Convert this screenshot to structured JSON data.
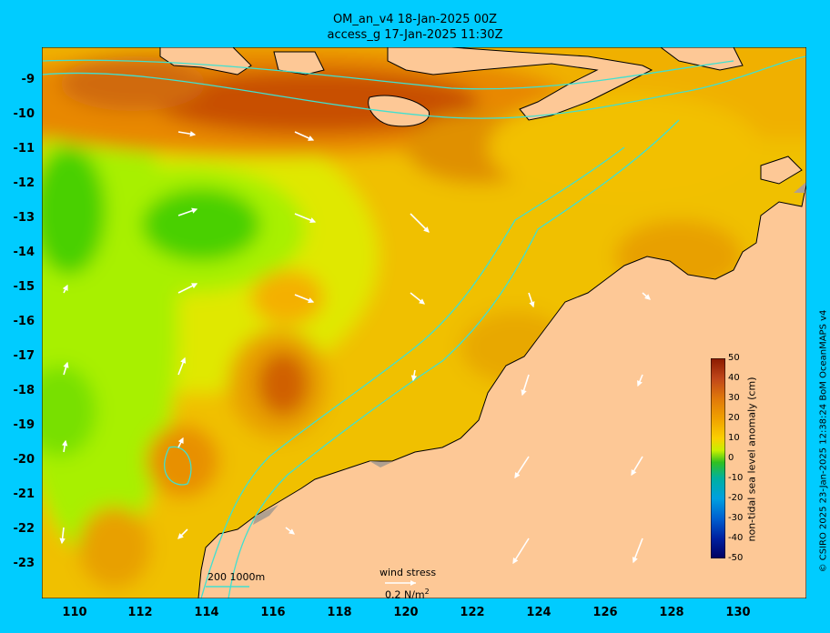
{
  "titles": {
    "line1": "OM_an_v4  18-Jan-2025 00Z",
    "line2": "access_g 17-Jan-2025 11:30Z"
  },
  "lat_ticks": [
    "-9",
    "-10",
    "-11",
    "-12",
    "-13",
    "-14",
    "-15",
    "-16",
    "-17",
    "-18",
    "-19",
    "-20",
    "-21",
    "-22",
    "-23"
  ],
  "lon_ticks": [
    "110",
    "112",
    "114",
    "116",
    "118",
    "120",
    "122",
    "124",
    "126",
    "128",
    "130"
  ],
  "colorbar": {
    "label": "non-tidal sea level anomaly (cm)",
    "ticks": [
      "50",
      "40",
      "30",
      "20",
      "10",
      "0",
      "-10",
      "-20",
      "-30",
      "-40",
      "-50"
    ],
    "range": [
      -50,
      50
    ]
  },
  "legend": {
    "contours": "200  1000m",
    "wind_title": "wind stress",
    "wind_scale": "0.2 N/m",
    "wind_scale_sup": "2"
  },
  "credit": "© CSIRO 2025  23-Jan-2025 12:38:24 BoM OceanMAPS v4",
  "colors": {
    "background": "#00ccff",
    "land": "#fdc896",
    "contour": "#40e0d0",
    "palette": [
      "#8b1a00",
      "#c0461a",
      "#e0780a",
      "#f0a000",
      "#fbc800",
      "#e8e800",
      "#a8f000",
      "#48d000",
      "#20b830"
    ]
  }
}
